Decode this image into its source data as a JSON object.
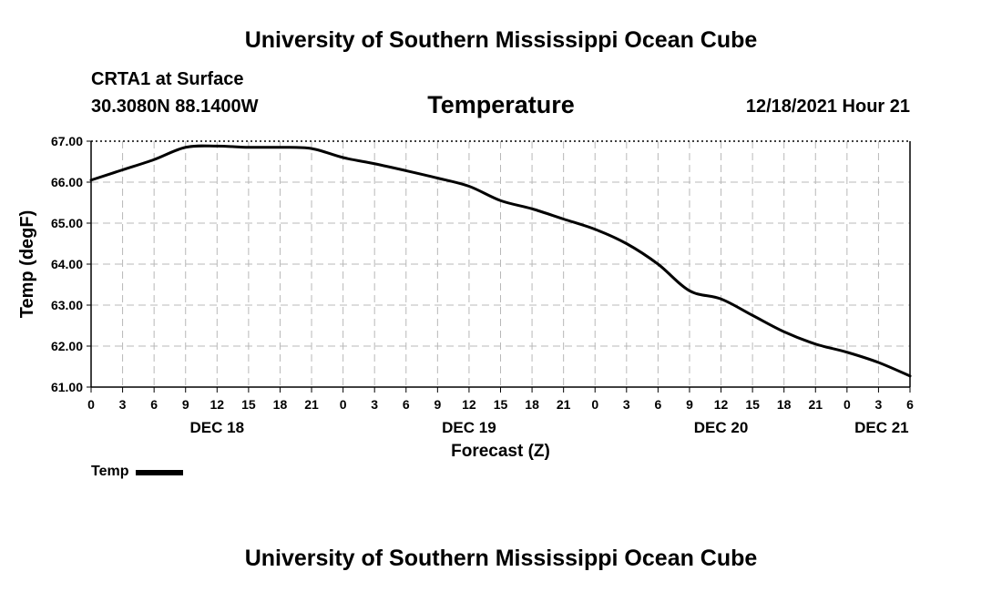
{
  "header": {
    "title": "University of Southern Mississippi Ocean Cube",
    "station": "CRTA1 at Surface",
    "coords": "30.3080N  88.1400W",
    "variable": "Temperature",
    "timestamp": "12/18/2021 Hour 21"
  },
  "footer": {
    "title": "University of Southern Mississippi Ocean Cube"
  },
  "chart_data": {
    "type": "line",
    "title": "Temperature",
    "xlabel": "Forecast (Z)",
    "ylabel": "Temp (degF)",
    "ylim": [
      61.0,
      67.0
    ],
    "xlim": [
      0,
      78
    ],
    "x_unit": "hours since DEC 18 00Z",
    "y_ticks": [
      "61.00",
      "62.00",
      "63.00",
      "64.00",
      "65.00",
      "66.00",
      "67.00"
    ],
    "x_ticks": [
      "0",
      "3",
      "6",
      "9",
      "12",
      "15",
      "18",
      "21",
      "0",
      "3",
      "6",
      "9",
      "12",
      "15",
      "18",
      "21",
      "0",
      "3",
      "6",
      "9",
      "12",
      "15",
      "18",
      "21",
      "0",
      "3",
      "6"
    ],
    "date_labels": [
      {
        "text": "DEC 18",
        "hour": 12
      },
      {
        "text": "DEC 19",
        "hour": 36
      },
      {
        "text": "DEC 20",
        "hour": 60
      },
      {
        "text": "DEC 21",
        "hour": 75.3
      }
    ],
    "grid": true,
    "legend": "bottom-left",
    "series": [
      {
        "name": "Temp",
        "color": "#000000",
        "x": [
          0,
          3,
          6,
          9,
          12,
          15,
          18,
          21,
          24,
          27,
          30,
          33,
          36,
          39,
          42,
          45,
          48,
          51,
          54,
          57,
          60,
          63,
          66,
          69,
          72,
          75,
          78
        ],
        "y": [
          66.05,
          66.3,
          66.55,
          66.85,
          66.88,
          66.85,
          66.85,
          66.82,
          66.6,
          66.45,
          66.28,
          66.1,
          65.9,
          65.55,
          65.35,
          65.1,
          64.85,
          64.5,
          64.0,
          63.35,
          63.15,
          62.75,
          62.35,
          62.05,
          61.85,
          61.6,
          61.27
        ]
      }
    ]
  }
}
